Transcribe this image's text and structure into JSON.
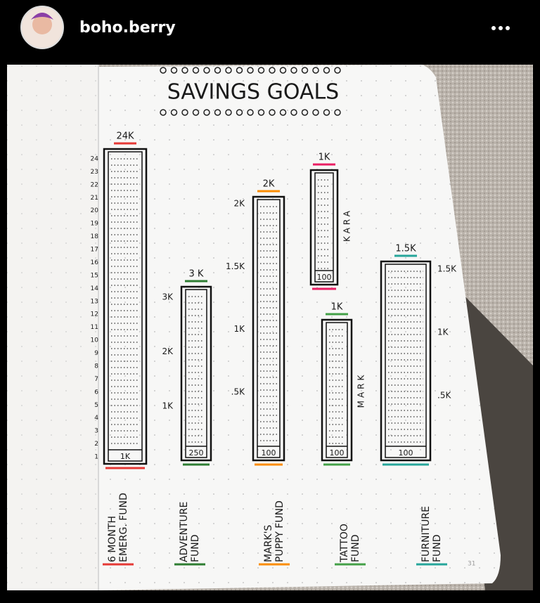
{
  "header": {
    "username": "boho.berry"
  },
  "journal": {
    "title": "SAVINGS GOALS",
    "trackers": [
      {
        "goal": "24K",
        "start": "1K",
        "scale": [
          "1",
          "2",
          "3",
          "4",
          "5",
          "6",
          "7",
          "8",
          "9",
          "10",
          "11",
          "12",
          "13",
          "14",
          "15",
          "16",
          "17",
          "18",
          "19",
          "20",
          "21",
          "22",
          "23",
          "24"
        ],
        "name": [
          "6 MONTH",
          "EMERG. FUND"
        ]
      },
      {
        "goal": "3 K",
        "start": "250",
        "scale": [
          "1K",
          "2K",
          "3K"
        ],
        "name": [
          "ADVENTURE",
          "FUND"
        ]
      },
      {
        "goal": "2K",
        "start": "100",
        "scale": [
          ".5K",
          "1K",
          "1.5K",
          "2K"
        ],
        "name": [
          "MARK'S",
          "PUPPY FUND"
        ]
      },
      {
        "goal": "1K",
        "start": "100",
        "side": "KARA"
      },
      {
        "goal": "1K",
        "start": "100",
        "side": "MARK",
        "name": [
          "TATTOO",
          "FUND"
        ]
      },
      {
        "goal": "1.5K",
        "start": "100",
        "scale": [
          ".5K",
          "1K",
          "1.5K"
        ],
        "name": [
          "FURNITURE",
          "FUND"
        ]
      }
    ],
    "page_number": "31"
  }
}
